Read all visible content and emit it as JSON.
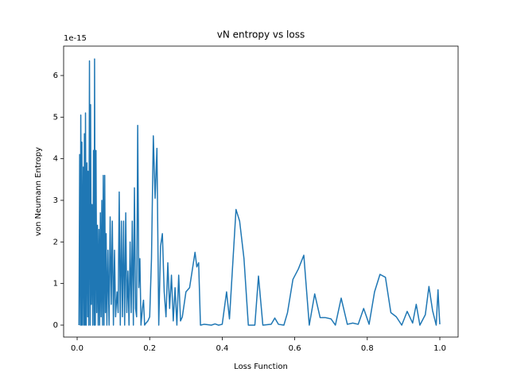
{
  "chart_data": {
    "type": "line",
    "title": "vN entropy vs loss",
    "xlabel": "Loss Function",
    "ylabel": "von Neumann Entropy",
    "y_offset_label": "1e-15",
    "xlim": [
      -0.0373,
      1.0504
    ],
    "ylim": [
      -0.287,
      6.707
    ],
    "xticks": [
      {
        "value": 0,
        "label": "0.0"
      },
      0.2,
      0.4,
      0.6,
      0.8,
      {
        "value": 1,
        "label": "1.0"
      }
    ],
    "yticks": [
      0,
      1,
      2,
      3,
      4,
      5,
      6
    ],
    "series": [
      {
        "name": "vN entropy",
        "color": "#1f77b4",
        "x": [
          0.005,
          0.007,
          0.009,
          0.01,
          0.012,
          0.013,
          0.015,
          0.017,
          0.019,
          0.02,
          0.022,
          0.023,
          0.025,
          0.027,
          0.029,
          0.03,
          0.032,
          0.034,
          0.036,
          0.037,
          0.039,
          0.041,
          0.043,
          0.045,
          0.047,
          0.048,
          0.05,
          0.052,
          0.054,
          0.056,
          0.058,
          0.06,
          0.062,
          0.064,
          0.066,
          0.068,
          0.07,
          0.072,
          0.074,
          0.076,
          0.078,
          0.08,
          0.082,
          0.085,
          0.088,
          0.091,
          0.094,
          0.097,
          0.1,
          0.103,
          0.106,
          0.11,
          0.113,
          0.116,
          0.119,
          0.122,
          0.125,
          0.128,
          0.131,
          0.134,
          0.137,
          0.14,
          0.143,
          0.146,
          0.149,
          0.152,
          0.155,
          0.158,
          0.161,
          0.164,
          0.167,
          0.17,
          0.173,
          0.176,
          0.18,
          0.183,
          0.186,
          0.19,
          0.195,
          0.2,
          0.205,
          0.21,
          0.215,
          0.22,
          0.225,
          0.23,
          0.235,
          0.24,
          0.245,
          0.25,
          0.255,
          0.26,
          0.265,
          0.27,
          0.275,
          0.28,
          0.285,
          0.29,
          0.3,
          0.31,
          0.325,
          0.33,
          0.335,
          0.34,
          0.35,
          0.37,
          0.38,
          0.39,
          0.4,
          0.412,
          0.42,
          0.438,
          0.448,
          0.46,
          0.472,
          0.49,
          0.5,
          0.512,
          0.535,
          0.545,
          0.555,
          0.57,
          0.58,
          0.595,
          0.61,
          0.625,
          0.64,
          0.655,
          0.67,
          0.685,
          0.7,
          0.712,
          0.728,
          0.745,
          0.76,
          0.775,
          0.79,
          0.805,
          0.82,
          0.835,
          0.85,
          0.865,
          0.88,
          0.895,
          0.91,
          0.925,
          0.935,
          0.945,
          0.96,
          0.97,
          0.98,
          0.99,
          0.995,
          0.998,
          1.0
        ],
        "values": [
          0,
          4.1,
          0,
          5.05,
          0,
          4.4,
          0,
          3.8,
          0,
          4.6,
          0,
          5.1,
          0,
          3.9,
          0.2,
          3.7,
          0,
          6.35,
          0,
          5.3,
          0.5,
          2.9,
          0,
          4.2,
          0,
          6.4,
          0,
          4.2,
          0.3,
          2.4,
          0,
          2.3,
          0,
          2.7,
          0.2,
          3.0,
          0,
          3.6,
          0,
          3.6,
          0.3,
          2.2,
          0,
          1.8,
          0,
          2.6,
          0.5,
          2.5,
          0,
          1.8,
          0.2,
          0.8,
          0.3,
          3.2,
          0,
          2.5,
          0.2,
          2.5,
          0,
          2.7,
          0.3,
          1.3,
          0,
          2.0,
          0.3,
          2.5,
          0,
          3.3,
          0.4,
          0.2,
          4.8,
          0.9,
          1.6,
          0,
          0.4,
          0.6,
          0,
          0.05,
          0.1,
          0.2,
          1.6,
          4.55,
          3.05,
          4.25,
          0,
          1.9,
          2.2,
          0.8,
          0.2,
          1.5,
          0.4,
          1.2,
          0.1,
          0.9,
          0,
          1.2,
          0.1,
          0.2,
          0.8,
          0.9,
          1.75,
          1.4,
          1.5,
          0,
          0.02,
          0,
          0.03,
          0,
          0.02,
          0.8,
          0.15,
          2.78,
          2.5,
          1.6,
          0,
          0,
          1.18,
          0,
          0.02,
          0.17,
          0.02,
          0,
          0.3,
          1.1,
          1.35,
          1.68,
          0,
          0.75,
          0.18,
          0.18,
          0.15,
          0,
          0.65,
          0.02,
          0.05,
          0.02,
          0.4,
          0.02,
          0.8,
          1.22,
          1.15,
          0.3,
          0.2,
          0,
          0.33,
          0.05,
          0.5,
          0,
          0.25,
          0.93,
          0.35,
          0,
          0.85,
          0.3,
          0.02
        ]
      }
    ]
  }
}
